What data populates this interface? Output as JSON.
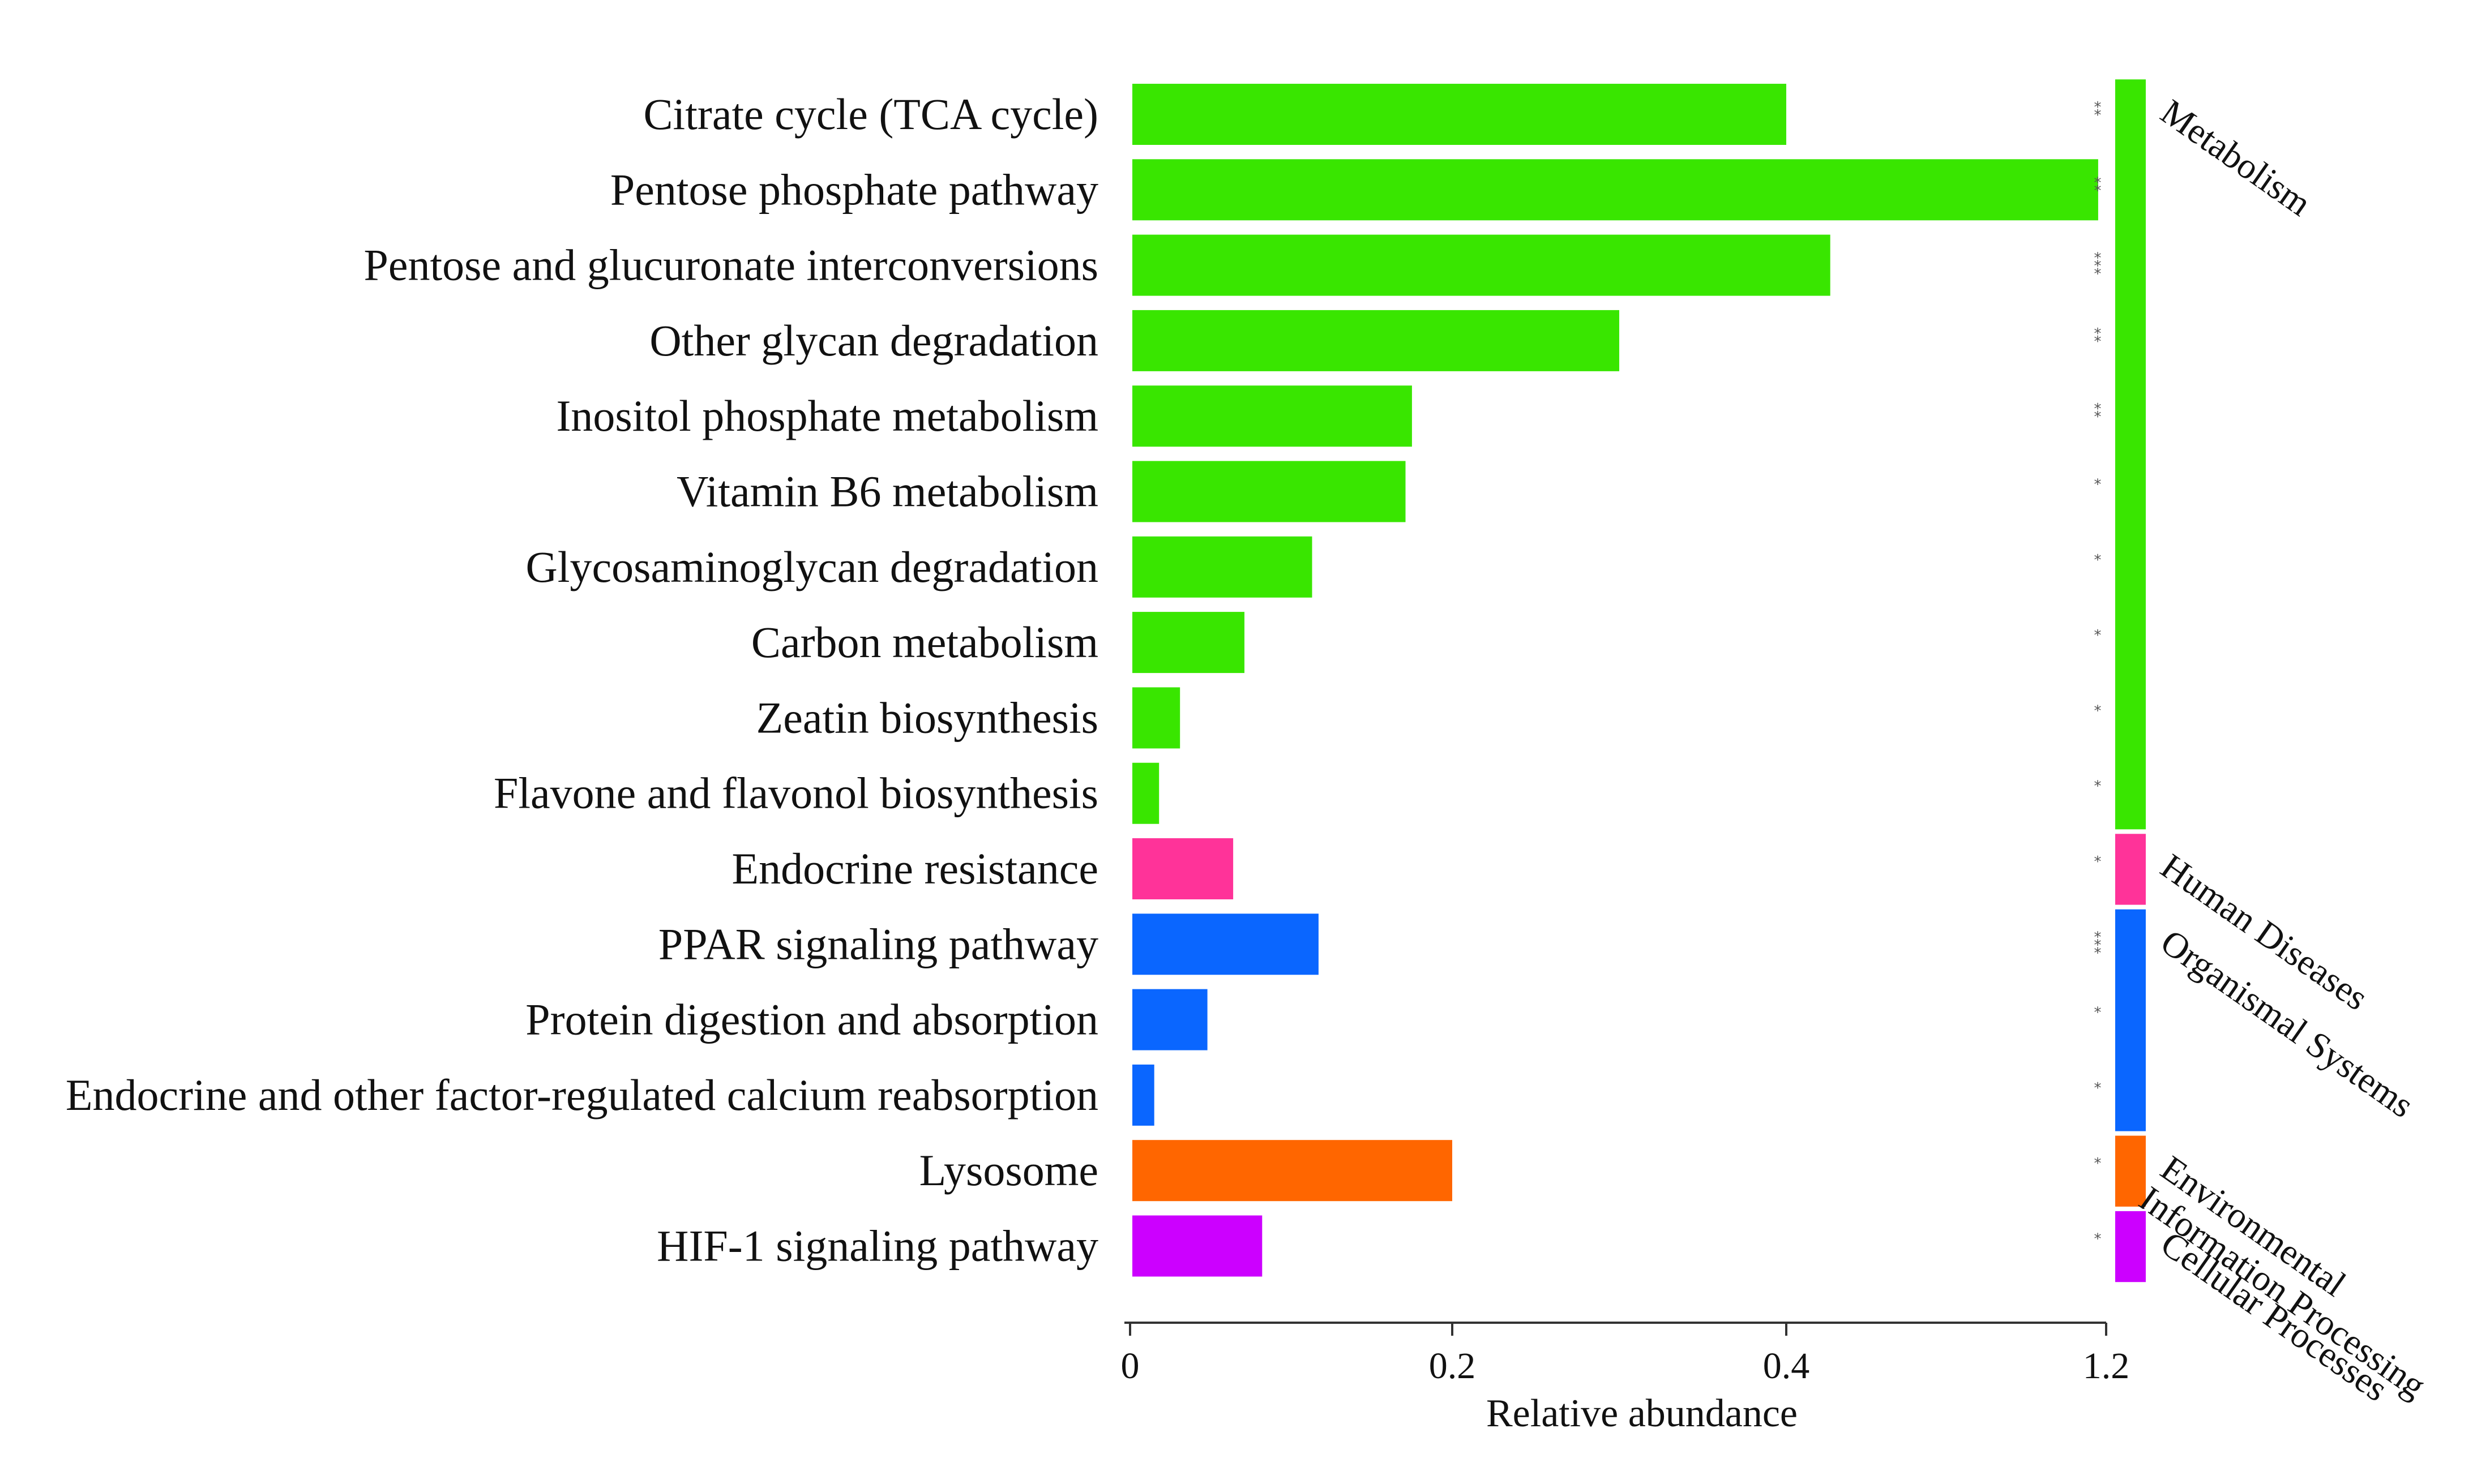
{
  "chart_data": {
    "type": "bar",
    "orientation": "horizontal",
    "title": "",
    "xlabel": "Relative abundance",
    "ylabel": "",
    "xlim": [
      0,
      1.2
    ],
    "ticks": [
      {
        "label": "0",
        "value": 0
      },
      {
        "label": "0.2",
        "value": 0.2
      },
      {
        "label": "0.4",
        "value": 0.4
      },
      {
        "label": "1.2",
        "value": 1.2
      }
    ],
    "axis_break_note": "axis jumps from 0.4 to 1.2 after the 0.4 tick",
    "grid": false,
    "categories": [
      "Citrate cycle (TCA cycle)",
      "Pentose phosphate pathway",
      "Pentose and glucuronate interconversions",
      "Other glycan degradation",
      "Inositol phosphate metabolism",
      "Vitamin B6 metabolism",
      "Glycosaminoglycan degradation",
      "Carbon metabolism",
      "Zeatin biosynthesis",
      "Flavone and flavonol biosynthesis",
      "Endocrine resistance",
      "PPAR signaling pathway",
      "Protein digestion and absorption",
      "Endocrine and other factor-regulated calcium reabsorption",
      "Lysosome",
      "HIF-1 signaling pathway"
    ],
    "values": [
      0.4,
      1.18,
      0.51,
      0.3,
      0.175,
      0.171,
      0.113,
      0.071,
      0.031,
      0.018,
      0.064,
      0.117,
      0.048,
      0.015,
      0.2,
      0.082
    ],
    "groups": [
      "Metabolism",
      "Metabolism",
      "Metabolism",
      "Metabolism",
      "Metabolism",
      "Metabolism",
      "Metabolism",
      "Metabolism",
      "Metabolism",
      "Metabolism",
      "Human Diseases",
      "Organismal Systems",
      "Organismal Systems",
      "Organismal Systems",
      "Environmental Information Processing",
      "Cellular Processes"
    ],
    "significance": [
      "**",
      "**",
      "***",
      "**",
      "**",
      "*",
      "*",
      "*",
      "*",
      "*",
      "*",
      "***",
      "*",
      "*",
      "*",
      "*"
    ],
    "group_legend": [
      {
        "name": "Metabolism",
        "lines": [
          "Metabolism"
        ],
        "color": "#39e600"
      },
      {
        "name": "Human Diseases",
        "lines": [
          "Human Diseases"
        ],
        "color": "#ff3399"
      },
      {
        "name": "Organismal Systems",
        "lines": [
          "Organismal Systems"
        ],
        "color": "#0a66ff"
      },
      {
        "name": "Environmental Information Processing",
        "lines": [
          "Environmental",
          "Information Processing"
        ],
        "color": "#ff6600"
      },
      {
        "name": "Cellular Processes",
        "lines": [
          "Cellular Processes"
        ],
        "color": "#cc00ff"
      }
    ]
  }
}
